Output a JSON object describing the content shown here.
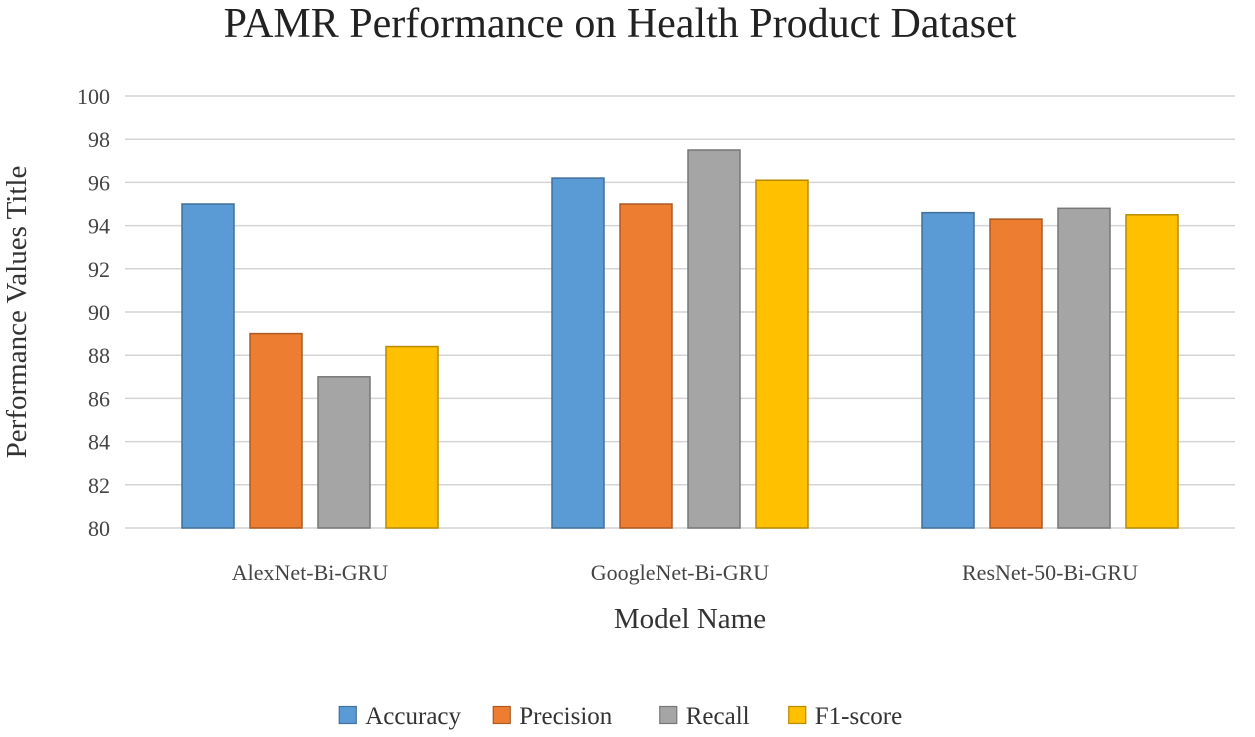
{
  "chart_data": {
    "type": "bar",
    "title": "PAMR Performance  on Health Product Dataset",
    "xlabel": "Model Name",
    "ylabel": "Performance Values Title",
    "categories": [
      "AlexNet-Bi-GRU",
      "GoogleNet-Bi-GRU",
      "ResNet-50-Bi-GRU"
    ],
    "series": [
      {
        "name": "Accuracy",
        "values": [
          95.0,
          96.2,
          94.6
        ],
        "color": "#5b9bd5"
      },
      {
        "name": "Precision",
        "values": [
          89.0,
          95.0,
          94.3
        ],
        "color": "#ed7d31"
      },
      {
        "name": "Recall",
        "values": [
          87.0,
          97.5,
          94.8
        ],
        "color": "#a5a5a5"
      },
      {
        "name": "F1-score",
        "values": [
          88.4,
          96.1,
          94.5
        ],
        "color": "#ffc000"
      }
    ],
    "ylim": [
      80,
      100
    ],
    "yticks": [
      80,
      82,
      84,
      86,
      88,
      90,
      92,
      94,
      96,
      98,
      100
    ],
    "grid": true,
    "legend_position": "bottom"
  }
}
